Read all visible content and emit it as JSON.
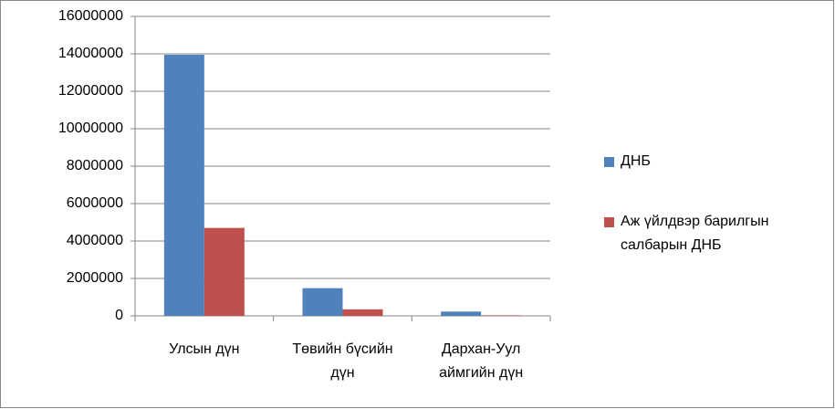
{
  "chart_data": {
    "type": "bar",
    "categories": [
      "Улсын дүн",
      "Төвийн бүсийн дүн",
      "Дархан-Уул аймгийн дүн"
    ],
    "series": [
      {
        "name": "ДНБ",
        "color": "#4f81bd",
        "values": [
          13950000,
          1480000,
          230000
        ]
      },
      {
        "name": "Аж үйлдвэр барилгын салбарын ДНБ",
        "color": "#c0504d",
        "values": [
          4700000,
          350000,
          30000
        ]
      }
    ],
    "ylim": [
      0,
      16000000
    ],
    "yticks": [
      0,
      2000000,
      4000000,
      6000000,
      8000000,
      10000000,
      12000000,
      14000000,
      16000000
    ],
    "grid": true,
    "legend": "right"
  }
}
